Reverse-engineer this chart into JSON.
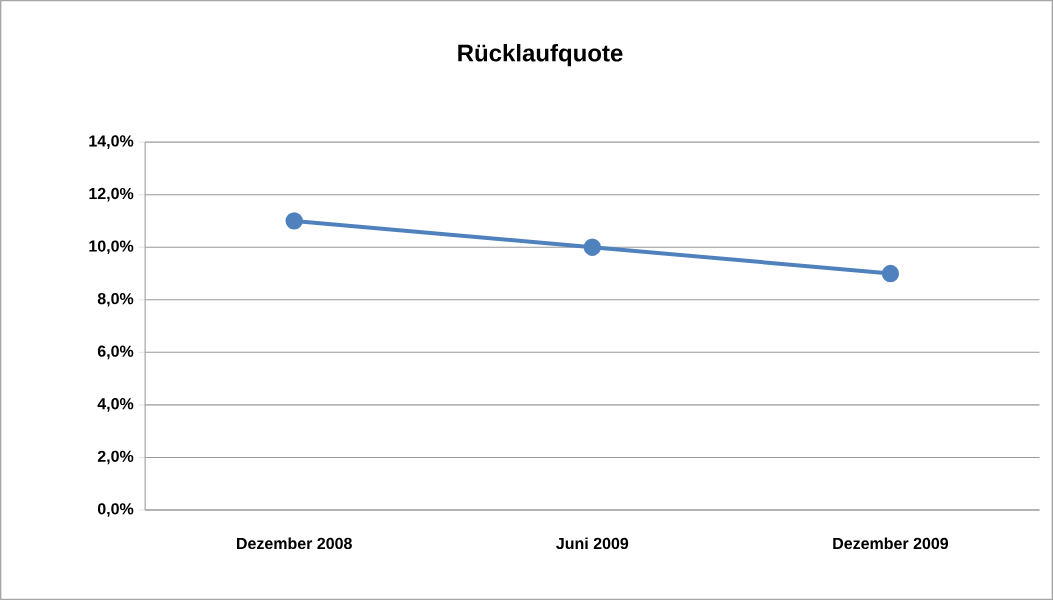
{
  "chart_data": {
    "type": "line",
    "title": "Rücklaufquote",
    "categories": [
      "Dezember 2008",
      "Juni 2009",
      "Dezember 2009"
    ],
    "series": [
      {
        "color": "#4f81bd",
        "values": [
          11.0,
          10.0,
          9.0
        ]
      }
    ],
    "ylim": [
      0,
      14
    ],
    "yticks": [
      {
        "value": 0,
        "label": "0,0%"
      },
      {
        "value": 2,
        "label": "2,0%"
      },
      {
        "value": 4,
        "label": "4,0%"
      },
      {
        "value": 6,
        "label": "6,0%"
      },
      {
        "value": 8,
        "label": "8,0%"
      },
      {
        "value": 10,
        "label": "10,0%"
      },
      {
        "value": 12,
        "label": "12,0%"
      },
      {
        "value": 14,
        "label": "14,0%"
      }
    ],
    "grid": "y",
    "marker": "circle"
  }
}
